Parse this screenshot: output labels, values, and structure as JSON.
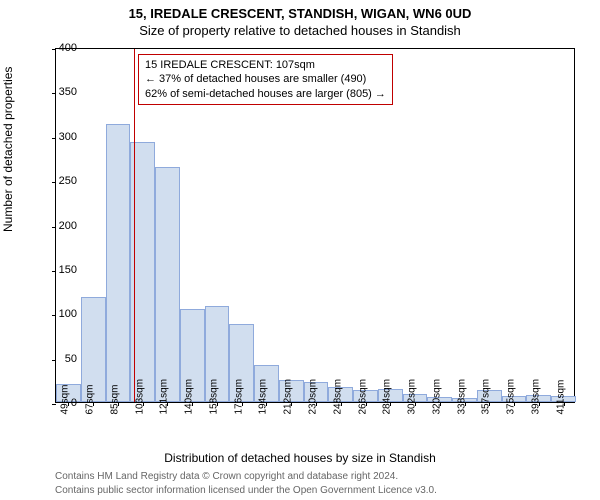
{
  "titles": {
    "main": "15, IREDALE CRESCENT, STANDISH, WIGAN, WN6 0UD",
    "sub": "Size of property relative to detached houses in Standish"
  },
  "axes": {
    "ylabel": "Number of detached properties",
    "xlabel": "Distribution of detached houses by size in Standish",
    "ylim": [
      0,
      400
    ],
    "ytick_step": 50,
    "yticks": [
      0,
      50,
      100,
      150,
      200,
      250,
      300,
      350,
      400
    ]
  },
  "chart": {
    "type": "histogram",
    "bar_fill": "#d1deef",
    "bar_border": "#8faadc",
    "background": "#ffffff",
    "border_color": "#000000",
    "categories": [
      "49sqm",
      "67sqm",
      "85sqm",
      "103sqm",
      "121sqm",
      "140sqm",
      "158sqm",
      "176sqm",
      "194sqm",
      "212sqm",
      "230sqm",
      "248sqm",
      "266sqm",
      "284sqm",
      "302sqm",
      "320sqm",
      "338sqm",
      "357sqm",
      "375sqm",
      "393sqm",
      "411sqm"
    ],
    "values": [
      20,
      118,
      313,
      293,
      265,
      105,
      108,
      88,
      42,
      25,
      22,
      17,
      14,
      15,
      9,
      6,
      5,
      13,
      7,
      8,
      7
    ]
  },
  "reference": {
    "x_index": 3.15,
    "color": "#c00000",
    "box": {
      "line1": "15 IREDALE CRESCENT: 107sqm",
      "line2": "← 37% of detached houses are smaller (490)",
      "line3": "62% of semi-detached houses are larger (805) →",
      "border_color": "#c00000",
      "bg": "#ffffff"
    }
  },
  "footer": {
    "line1": "Contains HM Land Registry data © Crown copyright and database right 2024.",
    "line2": "Contains public sector information licensed under the Open Government Licence v3.0."
  }
}
